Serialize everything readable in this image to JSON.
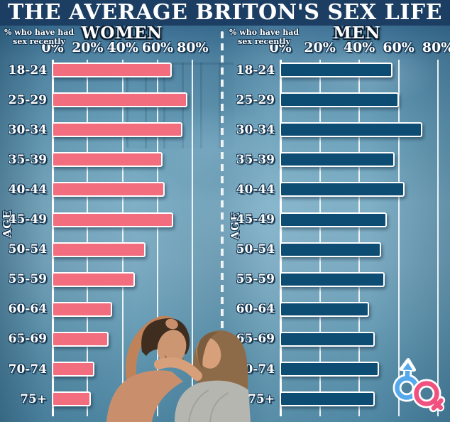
{
  "title": "THE AVERAGE BRITON'S SEX LIFE",
  "axis_note": "% who have had\nsex recently",
  "age_label": "AGE",
  "tick_labels": [
    "0%",
    "20%",
    "40%",
    "60%",
    "80%"
  ],
  "colors": {
    "title_bg": "#1c3e63",
    "women_bar": "#f26e7e",
    "men_bar": "#0e4d73",
    "male_symbol": "#55a8ec",
    "female_symbol": "#f1517f",
    "background_top": "#2b5d81",
    "background_mid": "#7fb0c6"
  },
  "images": {
    "couple_photo": "Couple embracing wrapped in a grey blanket"
  },
  "icons": {
    "gender_symbols": "interlocked male and female symbols"
  },
  "chart_data": [
    {
      "type": "bar",
      "orientation": "horizontal",
      "title": "WOMEN",
      "bar_color": "#f26e7e",
      "xlabel": "% who have had sex recently",
      "ylabel": "AGE",
      "xlim": [
        0,
        80
      ],
      "xticks": [
        "0%",
        "20%",
        "40%",
        "60%",
        "80%"
      ],
      "categories": [
        "18-24",
        "25-29",
        "30-34",
        "35-39",
        "40-44",
        "45-49",
        "50-54",
        "55-59",
        "60-64",
        "65-69",
        "70-74",
        "75+"
      ],
      "values": [
        68,
        77,
        74,
        63,
        64,
        69,
        53,
        47,
        34,
        32,
        24,
        22
      ]
    },
    {
      "type": "bar",
      "orientation": "horizontal",
      "title": "MEN",
      "bar_color": "#0e4d73",
      "xlabel": "% who have had sex recently",
      "ylabel": "AGE",
      "xlim": [
        0,
        80
      ],
      "xticks": [
        "0%",
        "20%",
        "40%",
        "60%",
        "80%"
      ],
      "categories": [
        "18-24",
        "25-29",
        "30-34",
        "35-39",
        "40-44",
        "45-49",
        "50-54",
        "55-59",
        "60-64",
        "65-69",
        "70-74",
        "75+"
      ],
      "values": [
        57,
        60,
        72,
        58,
        63,
        54,
        51,
        53,
        45,
        48,
        50,
        48
      ]
    }
  ]
}
